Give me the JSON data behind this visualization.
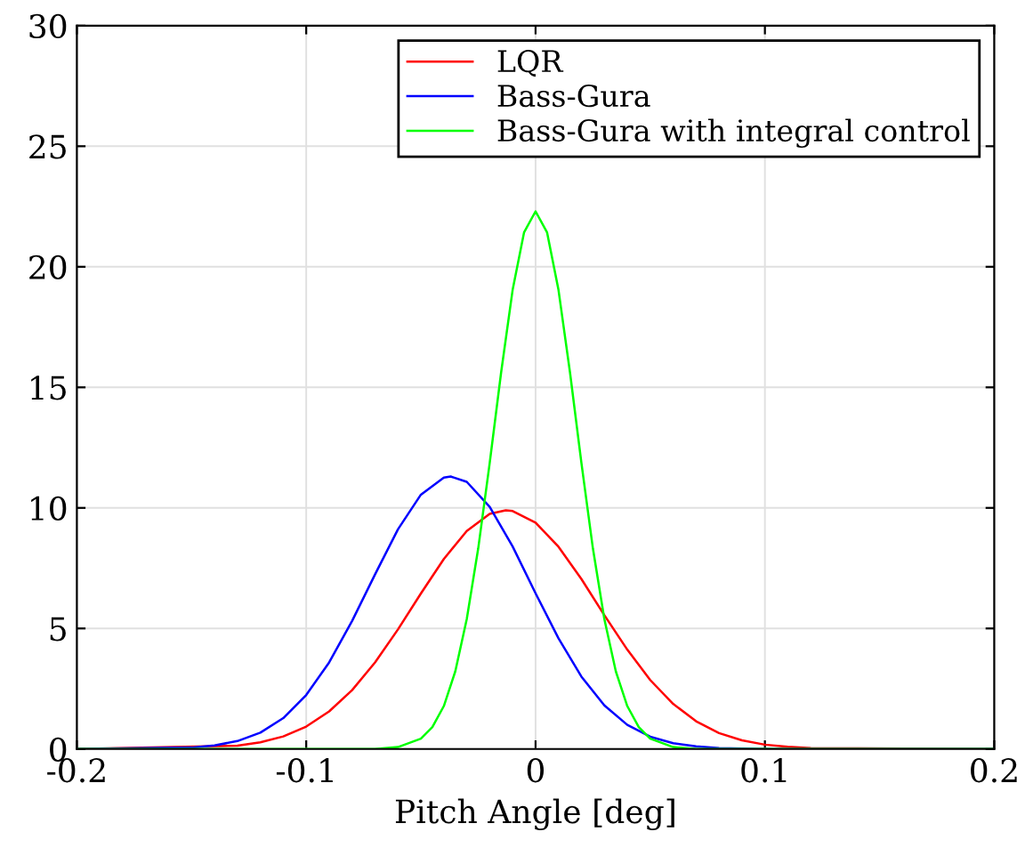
{
  "chart_data": {
    "type": "line",
    "xlabel": "Pitch Angle [deg]",
    "xlim": [
      -0.2,
      0.2
    ],
    "xticks": [
      -0.2,
      -0.1,
      0,
      0.1,
      0.2
    ],
    "ylim": [
      0,
      30
    ],
    "yticks": [
      0,
      5,
      10,
      15,
      20,
      25,
      30
    ],
    "grid": true,
    "legend": "top right",
    "marker": "none",
    "line_style": "solid",
    "series": [
      {
        "name": "LQR",
        "color": "#ff0000",
        "x": [
          -0.2,
          -0.13,
          -0.12,
          -0.11,
          -0.1,
          -0.09,
          -0.08,
          -0.07,
          -0.06,
          -0.05,
          -0.04,
          -0.03,
          -0.02,
          -0.013,
          -0.01,
          0,
          0.01,
          0.02,
          0.03,
          0.04,
          0.05,
          0.06,
          0.07,
          0.08,
          0.09,
          0.1,
          0.11,
          0.12,
          0.2
        ],
        "values": [
          0,
          0.14,
          0.28,
          0.52,
          0.93,
          1.56,
          2.44,
          3.59,
          4.96,
          6.45,
          7.88,
          9.04,
          9.75,
          9.9,
          9.87,
          9.39,
          8.39,
          7.05,
          5.55,
          4.12,
          2.86,
          1.87,
          1.15,
          0.66,
          0.36,
          0.18,
          0.09,
          0.04,
          0
        ]
      },
      {
        "name": "Bass-Gura",
        "color": "#0000ff",
        "x": [
          -0.2,
          -0.15,
          -0.14,
          -0.13,
          -0.12,
          -0.11,
          -0.1,
          -0.09,
          -0.08,
          -0.07,
          -0.06,
          -0.05,
          -0.04,
          -0.037,
          -0.03,
          -0.02,
          -0.01,
          0,
          0.01,
          0.02,
          0.03,
          0.04,
          0.05,
          0.06,
          0.07,
          0.08,
          0.1,
          0.2
        ],
        "values": [
          0,
          0.06,
          0.15,
          0.33,
          0.68,
          1.28,
          2.24,
          3.59,
          5.31,
          7.24,
          9.11,
          10.55,
          11.26,
          11.3,
          11.08,
          10.04,
          8.4,
          6.46,
          4.59,
          3.0,
          1.81,
          1.0,
          0.51,
          0.24,
          0.11,
          0.04,
          0,
          0
        ]
      },
      {
        "name": "Bass-Gura with integral control",
        "color": "#00ff00",
        "x": [
          -0.2,
          -0.07,
          -0.06,
          -0.05,
          -0.045,
          -0.04,
          -0.035,
          -0.03,
          -0.025,
          -0.02,
          -0.015,
          -0.01,
          -0.005,
          0,
          0.005,
          0.01,
          0.015,
          0.02,
          0.025,
          0.03,
          0.035,
          0.04,
          0.045,
          0.05,
          0.06,
          0.07,
          0.2
        ],
        "values": [
          0,
          0,
          0.08,
          0.43,
          0.91,
          1.78,
          3.22,
          5.39,
          8.32,
          11.86,
          15.63,
          19.04,
          21.43,
          22.3,
          21.43,
          19.04,
          15.63,
          11.86,
          8.32,
          5.39,
          3.22,
          1.78,
          0.91,
          0.43,
          0.08,
          0,
          0
        ]
      }
    ]
  }
}
